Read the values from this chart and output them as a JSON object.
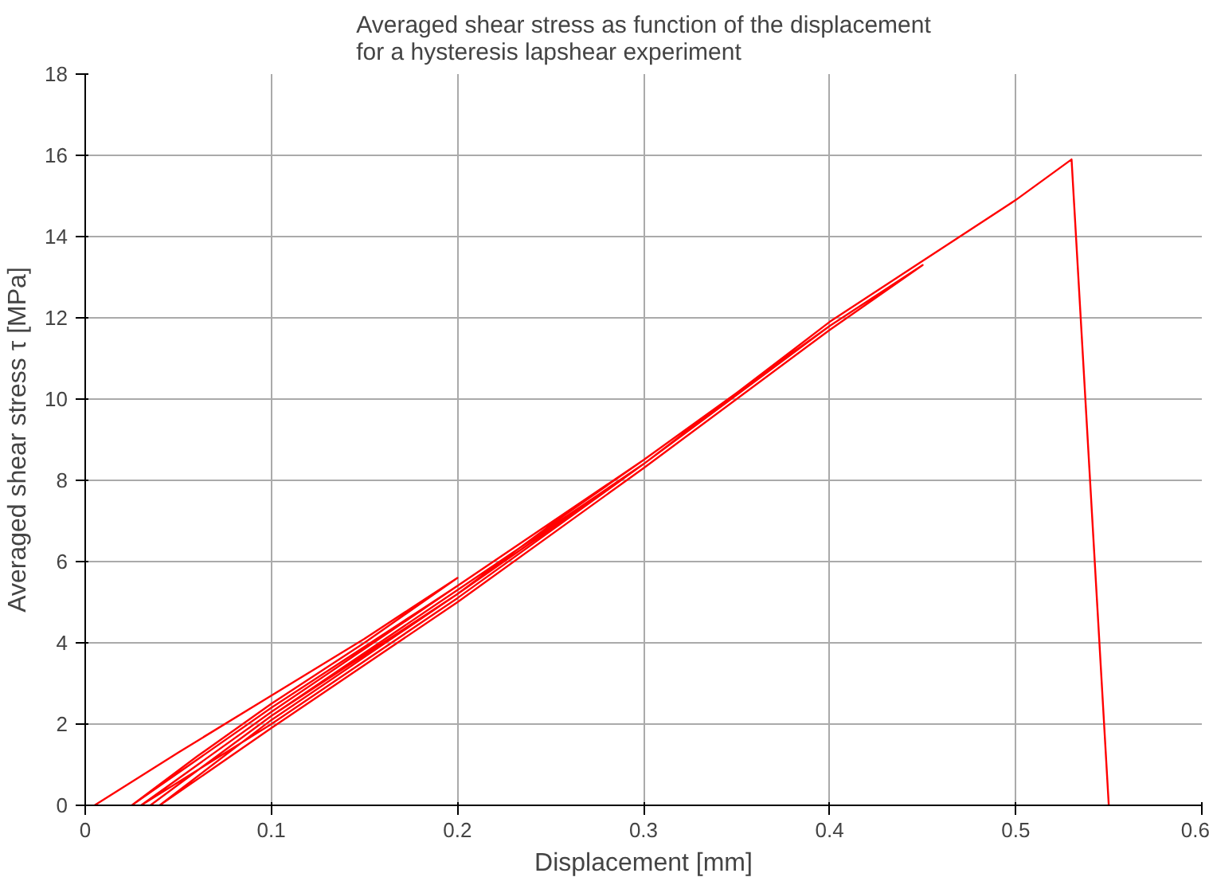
{
  "chart_data": {
    "type": "line",
    "title": "Averaged shear stress as function of the displacement\nfor a hysteresis lapshear experiment",
    "xlabel": "Displacement [mm]",
    "ylabel": "Averaged shear stress τ [MPa]",
    "series": [
      {
        "color": "#ff0000",
        "x": [
          0.005,
          0.05,
          0.1,
          0.15,
          0.2,
          0.15,
          0.1,
          0.06,
          0.025,
          0.1,
          0.2,
          0.3,
          0.25,
          0.2,
          0.1,
          0.035,
          0.1,
          0.2,
          0.3,
          0.4,
          0.35,
          0.3,
          0.2,
          0.1,
          0.03,
          0.1,
          0.2,
          0.3,
          0.4,
          0.45,
          0.4,
          0.3,
          0.2,
          0.1,
          0.04,
          0.1,
          0.2,
          0.3,
          0.4,
          0.45,
          0.5,
          0.53,
          0.55
        ],
        "values": [
          0,
          1.3,
          2.7,
          4.1,
          5.6,
          4.0,
          2.5,
          1.2,
          0,
          2.4,
          5.4,
          8.5,
          6.9,
          5.2,
          2.2,
          0,
          2.2,
          5.3,
          8.4,
          11.8,
          10.1,
          8.4,
          5.1,
          2.0,
          0,
          2.3,
          5.4,
          8.5,
          11.8,
          13.3,
          11.7,
          8.3,
          5.0,
          1.9,
          0,
          2.1,
          5.2,
          8.4,
          11.9,
          13.4,
          14.9,
          15.9,
          0
        ]
      }
    ],
    "xlim": [
      0,
      0.6
    ],
    "ylim": [
      0,
      18
    ],
    "xticks": [
      0,
      0.1,
      0.2,
      0.3,
      0.4,
      0.5,
      0.6
    ],
    "yticks": [
      0,
      2,
      4,
      6,
      8,
      10,
      12,
      14,
      16,
      18
    ],
    "grid": true,
    "line_style": "solid"
  }
}
